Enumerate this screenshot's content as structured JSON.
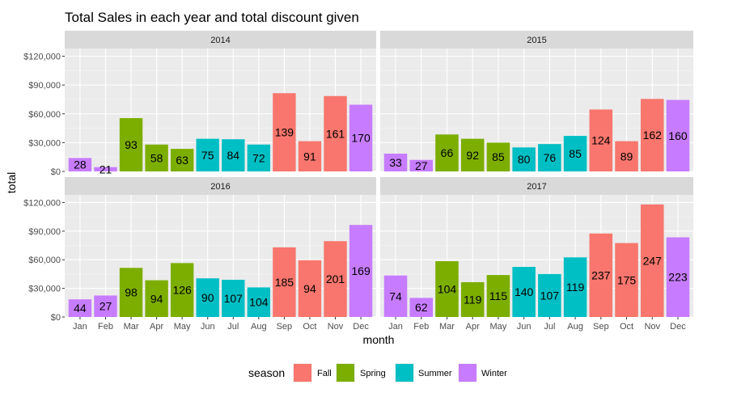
{
  "chart_data": {
    "type": "bar",
    "title": "Total Sales in each year and total discount given",
    "xlabel": "month",
    "ylabel": "total",
    "ylim": [
      0,
      128000
    ],
    "y_ticks": [
      {
        "value": 0,
        "label": "$0"
      },
      {
        "value": 30000,
        "label": "$30,000"
      },
      {
        "value": 60000,
        "label": "$60,000"
      },
      {
        "value": 90000,
        "label": "$90,000"
      },
      {
        "value": 120000,
        "label": "$120,000"
      }
    ],
    "categories": [
      "Jan",
      "Feb",
      "Mar",
      "Apr",
      "May",
      "Jun",
      "Jul",
      "Aug",
      "Sep",
      "Oct",
      "Nov",
      "Dec"
    ],
    "season_of_month": [
      "Winter",
      "Winter",
      "Spring",
      "Spring",
      "Spring",
      "Summer",
      "Summer",
      "Summer",
      "Fall",
      "Fall",
      "Fall",
      "Winter"
    ],
    "legend": {
      "title": "season",
      "entries": [
        {
          "name": "Fall",
          "color": "#F8766D"
        },
        {
          "name": "Spring",
          "color": "#7CAE00"
        },
        {
          "name": "Summer",
          "color": "#00BFC4"
        },
        {
          "name": "Winter",
          "color": "#C77CFF"
        }
      ]
    },
    "panels": [
      {
        "year": "2014",
        "values": [
          14000,
          4500,
          55500,
          28000,
          23500,
          34000,
          33500,
          28000,
          81500,
          31500,
          78500,
          69500
        ],
        "discount_labels": [
          "28",
          "21",
          "93",
          "58",
          "63",
          "75",
          "84",
          "72",
          "139",
          "91",
          "161",
          "170"
        ]
      },
      {
        "year": "2015",
        "values": [
          18500,
          12000,
          38500,
          34000,
          30000,
          25000,
          28500,
          37000,
          64500,
          31500,
          75500,
          74500
        ],
        "discount_labels": [
          "33",
          "27",
          "66",
          "92",
          "85",
          "80",
          "76",
          "85",
          "124",
          "89",
          "162",
          "160"
        ]
      },
      {
        "year": "2016",
        "values": [
          18500,
          22500,
          51500,
          38500,
          56500,
          40500,
          39000,
          31000,
          73000,
          59500,
          79500,
          96500
        ],
        "discount_labels": [
          "44",
          "27",
          "98",
          "94",
          "126",
          "90",
          "107",
          "104",
          "185",
          "94",
          "201",
          "169"
        ]
      },
      {
        "year": "2017",
        "values": [
          43500,
          20000,
          58500,
          36500,
          44000,
          52500,
          45000,
          62500,
          87500,
          77500,
          118000,
          83500
        ],
        "discount_labels": [
          "74",
          "62",
          "104",
          "119",
          "115",
          "140",
          "107",
          "119",
          "237",
          "175",
          "247",
          "223"
        ]
      }
    ]
  }
}
